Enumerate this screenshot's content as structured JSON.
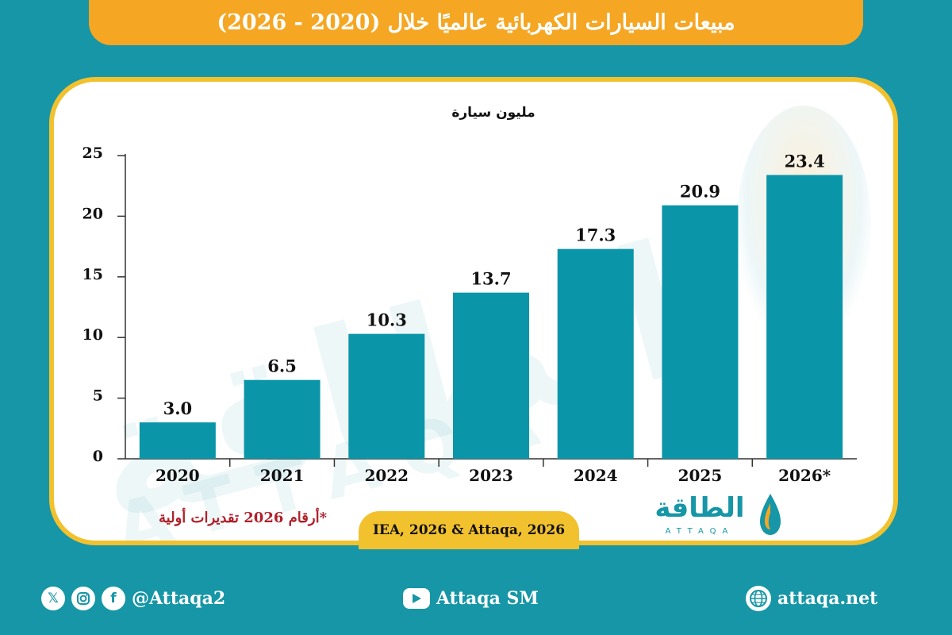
{
  "header": {
    "title": "مبيعات السيارات الكهربائية عالميًا خلال (2020 - 2026)"
  },
  "chart_data": {
    "type": "bar",
    "title": "مبيعات السيارات الكهربائية عالميًا خلال (2020 - 2026)",
    "ylabel": "مليون سيارة",
    "categories": [
      "2020",
      "2021",
      "2022",
      "2023",
      "2024",
      "2025",
      "2026*"
    ],
    "values": [
      3.0,
      6.5,
      10.3,
      13.7,
      17.3,
      20.9,
      23.4
    ],
    "value_labels": [
      "3.0",
      "6.5",
      "10.3",
      "13.7",
      "17.3",
      "20.9",
      "23.4"
    ],
    "ylim": [
      0,
      25
    ],
    "yticks": [
      "0",
      "5",
      "10",
      "15",
      "20",
      "25"
    ],
    "grid": false,
    "bar_color": "#0a95a8"
  },
  "footnote": "*أرقام 2026 تقديرات أولية",
  "source": "IEA, 2026 & Attaqa, 2026",
  "logo": {
    "ar": "الطاقة",
    "en": "ATTAQA"
  },
  "footer": {
    "social_handle": "@Attaqa2",
    "youtube": "Attaqa SM",
    "website": "attaqa.net",
    "icons": [
      "x-icon",
      "instagram-icon",
      "facebook-icon",
      "youtube-icon",
      "globe-icon"
    ]
  },
  "colors": {
    "background": "#1696a6",
    "title_bar": "#f5a623",
    "card_border": "#f2c12e",
    "bar": "#0a95a8",
    "footnote": "#b0202a"
  }
}
